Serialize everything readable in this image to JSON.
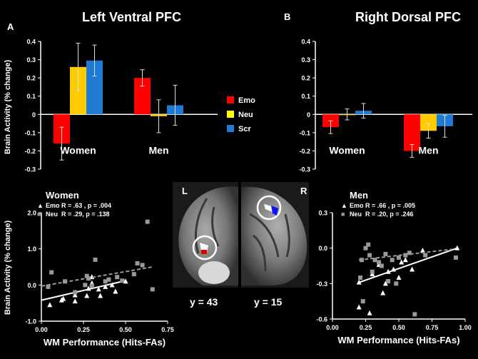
{
  "panel_a": {
    "letter": "A",
    "title": "Left Ventral PFC"
  },
  "panel_b": {
    "letter": "B",
    "title": "Right Dorsal PFC"
  },
  "legend": [
    {
      "label": "Emo",
      "color": "#ff0000"
    },
    {
      "label": "Neu",
      "color": "#ffff00"
    },
    {
      "label": "Scr",
      "color": "#1f7ad4"
    }
  ],
  "brain": {
    "left_letter": "L",
    "right_letter": "R",
    "left_caption": "y = 43",
    "right_caption": "y = 15"
  },
  "chart_data": [
    {
      "type": "bar",
      "title": "Left Ventral PFC",
      "ylabel": "Brain Activity (% change)",
      "ylim": [
        -0.3,
        0.4
      ],
      "yticks": [
        "0.4",
        "0.3",
        "0.2",
        "0.1",
        "0",
        "-0.1",
        "-0.2",
        "-0.3"
      ],
      "groups": [
        "Women",
        "Men"
      ],
      "series": [
        {
          "name": "Emo",
          "color": "#ff0000",
          "values": [
            -0.16,
            0.2
          ],
          "errors": [
            0.09,
            0.045
          ]
        },
        {
          "name": "Neu",
          "color": "#ffcc00",
          "values": [
            0.26,
            -0.01
          ],
          "errors": [
            0.13,
            0.09
          ]
        },
        {
          "name": "Scr",
          "color": "#1f7ad4",
          "values": [
            0.295,
            0.05
          ],
          "errors": [
            0.085,
            0.11
          ]
        }
      ]
    },
    {
      "type": "bar",
      "title": "Right Dorsal PFC",
      "ylabel": "",
      "ylim": [
        -0.3,
        0.4
      ],
      "yticks": [
        "0.4",
        "0.3",
        "0.2",
        "0.1",
        "0",
        "-0.1",
        "-0.2",
        "-0.3"
      ],
      "groups": [
        "Women",
        "Men"
      ],
      "series": [
        {
          "name": "Emo",
          "color": "#ff0000",
          "values": [
            -0.07,
            -0.2
          ],
          "errors": [
            0.035,
            0.035
          ]
        },
        {
          "name": "Neu",
          "color": "#ffcc00",
          "values": [
            0.0,
            -0.09
          ],
          "errors": [
            0.03,
            0.04
          ]
        },
        {
          "name": "Scr",
          "color": "#1f7ad4",
          "values": [
            0.02,
            -0.065
          ],
          "errors": [
            0.04,
            0.06
          ]
        }
      ]
    },
    {
      "type": "scatter",
      "title": "Women",
      "xlabel": "WM Performance (Hits-FAs)",
      "ylabel": "Brain Activity (% change)",
      "xlim": [
        0,
        0.75
      ],
      "ylim": [
        -1,
        2
      ],
      "xticks": [
        "0.00",
        "0.25",
        "0.50",
        "0.75"
      ],
      "yticks": [
        "2.0",
        "1.0",
        "0.0",
        "-1.0"
      ],
      "legend": [
        {
          "marker": "▲",
          "label": "Emo",
          "stat": "R = .63 ,  p = .004"
        },
        {
          "marker": "■",
          "label": "Neu",
          "stat": "R = .29,  p = .138"
        }
      ],
      "series": [
        {
          "name": "Emo",
          "marker": "triangle",
          "color": "#ffffff",
          "fit": [
            [
              0.0,
              -0.42
            ],
            [
              0.5,
              0.12
            ]
          ],
          "points": [
            [
              0.05,
              -0.55
            ],
            [
              0.12,
              -0.42
            ],
            [
              0.13,
              -0.38
            ],
            [
              0.2,
              -0.45
            ],
            [
              0.2,
              -0.28
            ],
            [
              0.27,
              -0.3
            ],
            [
              0.28,
              -0.1
            ],
            [
              0.3,
              0.05
            ],
            [
              0.3,
              0.22
            ],
            [
              0.34,
              -0.12
            ],
            [
              0.35,
              -0.3
            ],
            [
              0.38,
              -0.05
            ],
            [
              0.42,
              0.0
            ],
            [
              0.44,
              -0.18
            ],
            [
              0.5,
              0.1
            ]
          ]
        },
        {
          "name": "Neu",
          "marker": "square",
          "color": "#999999",
          "fit": [
            [
              0.0,
              -0.03
            ],
            [
              0.66,
              0.5
            ]
          ],
          "points": [
            [
              0.04,
              -0.05
            ],
            [
              0.06,
              0.35
            ],
            [
              0.14,
              0.1
            ],
            [
              0.2,
              -0.2
            ],
            [
              0.26,
              0.0
            ],
            [
              0.27,
              0.25
            ],
            [
              0.28,
              0.18
            ],
            [
              0.3,
              -0.02
            ],
            [
              0.32,
              0.7
            ],
            [
              0.38,
              0.1
            ],
            [
              0.4,
              0.15
            ],
            [
              0.45,
              0.22
            ],
            [
              0.48,
              0.12
            ],
            [
              0.55,
              0.3
            ],
            [
              0.57,
              0.6
            ],
            [
              0.6,
              0.55
            ],
            [
              0.63,
              1.75
            ],
            [
              0.66,
              -0.12
            ]
          ]
        }
      ]
    },
    {
      "type": "scatter",
      "title": "Men",
      "xlabel": "WM Performance (Hits-FAs)",
      "ylabel": "",
      "xlim": [
        0,
        1
      ],
      "ylim": [
        -0.6,
        0.3
      ],
      "xticks": [
        "0.00",
        "0.25",
        "0.50",
        "0.75",
        "1.00"
      ],
      "yticks": [
        "0.3",
        "0.0",
        "-0.3",
        "-0.6"
      ],
      "legend": [
        {
          "marker": "▲",
          "label": "Emo",
          "stat": "R = .66 ,  p = .005"
        },
        {
          "marker": "■",
          "label": "Neu",
          "stat": "R = .20,  p = .246"
        }
      ],
      "series": [
        {
          "name": "Emo",
          "marker": "triangle",
          "color": "#ffffff",
          "fit": [
            [
              0.2,
              -0.29
            ],
            [
              0.94,
              0.0
            ]
          ],
          "points": [
            [
              0.2,
              -0.29
            ],
            [
              0.2,
              -0.5
            ],
            [
              0.28,
              -0.55
            ],
            [
              0.3,
              -0.22
            ],
            [
              0.35,
              -0.14
            ],
            [
              0.38,
              -0.38
            ],
            [
              0.4,
              -0.3
            ],
            [
              0.42,
              -0.2
            ],
            [
              0.46,
              -0.18
            ],
            [
              0.5,
              -0.25
            ],
            [
              0.52,
              -0.12
            ],
            [
              0.55,
              -0.1
            ],
            [
              0.6,
              -0.18
            ],
            [
              0.68,
              -0.02
            ],
            [
              0.94,
              0.0
            ]
          ]
        },
        {
          "name": "Neu",
          "marker": "square",
          "color": "#999999",
          "fit": [
            [
              0.2,
              -0.1
            ],
            [
              0.9,
              -0.01
            ]
          ],
          "points": [
            [
              0.21,
              -0.25
            ],
            [
              0.22,
              -0.1
            ],
            [
              0.23,
              -0.45
            ],
            [
              0.25,
              0.0
            ],
            [
              0.27,
              0.03
            ],
            [
              0.28,
              -0.06
            ],
            [
              0.3,
              -0.2
            ],
            [
              0.32,
              -0.1
            ],
            [
              0.35,
              -0.12
            ],
            [
              0.37,
              -0.15
            ],
            [
              0.4,
              -0.05
            ],
            [
              0.42,
              -0.28
            ],
            [
              0.45,
              -0.1
            ],
            [
              0.48,
              -0.3
            ],
            [
              0.5,
              -0.08
            ],
            [
              0.55,
              -0.06
            ],
            [
              0.58,
              -0.04
            ],
            [
              0.62,
              -0.56
            ],
            [
              0.7,
              -0.06
            ],
            [
              0.93,
              -0.08
            ]
          ]
        }
      ]
    }
  ]
}
